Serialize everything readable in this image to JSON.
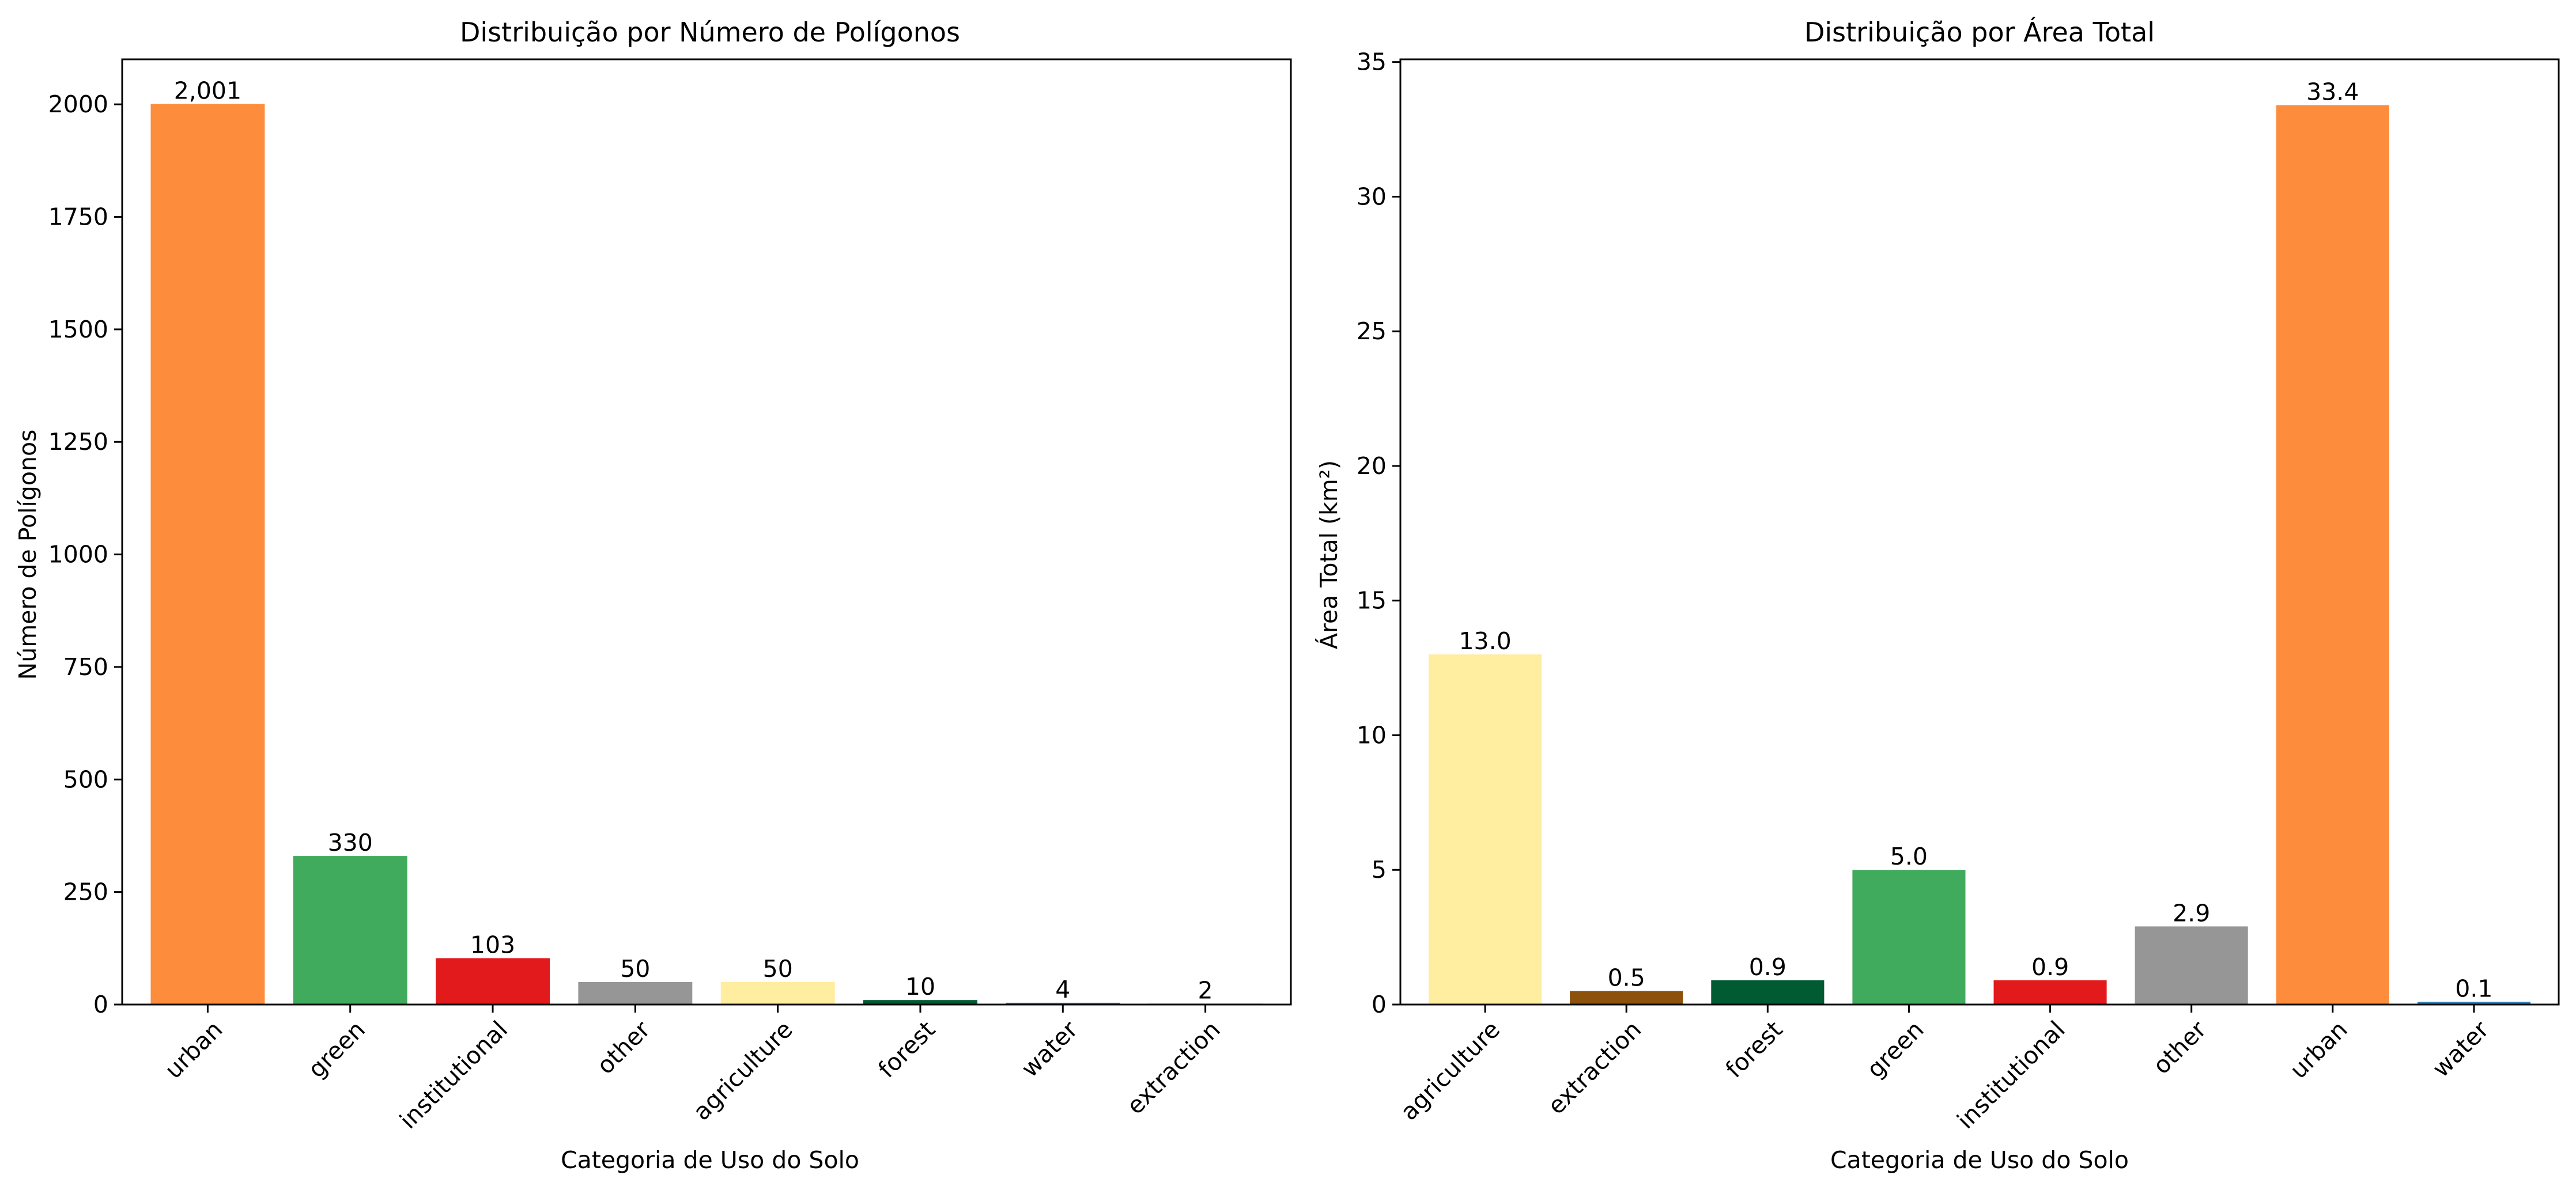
{
  "chart_data": [
    {
      "type": "bar",
      "title": "Distribuição por Número de Polígonos",
      "xlabel": "Categoria de Uso do Solo",
      "ylabel": "Número de Polígonos",
      "categories": [
        "urban",
        "green",
        "institutional",
        "other",
        "agriculture",
        "forest",
        "water",
        "extraction"
      ],
      "values": [
        2001,
        330,
        103,
        50,
        50,
        10,
        4,
        2
      ],
      "value_labels": [
        "2,001",
        "330",
        "103",
        "50",
        "50",
        "10",
        "4",
        "2"
      ],
      "colors": [
        "#fd8d3c",
        "#41ab5d",
        "#e31a1c",
        "#969696",
        "#ffeda0",
        "#005a32",
        "#2c7fb8",
        "#8c510a"
      ],
      "ylim": [
        0,
        2100
      ],
      "yticks": [
        0,
        250,
        500,
        750,
        1000,
        1250,
        1500,
        1750,
        2000
      ],
      "grid": false,
      "legend": "none"
    },
    {
      "type": "bar",
      "title": "Distribuição por Área Total",
      "xlabel": "Categoria de Uso do Solo",
      "ylabel": "Área Total (km²)",
      "categories": [
        "agriculture",
        "extraction",
        "forest",
        "green",
        "institutional",
        "other",
        "urban",
        "water"
      ],
      "values": [
        13.0,
        0.5,
        0.9,
        5.0,
        0.9,
        2.9,
        33.4,
        0.1
      ],
      "value_labels": [
        "13.0",
        "0.5",
        "0.9",
        "5.0",
        "0.9",
        "2.9",
        "33.4",
        "0.1"
      ],
      "colors": [
        "#ffeda0",
        "#8c510a",
        "#005a32",
        "#41ab5d",
        "#e31a1c",
        "#969696",
        "#fd8d3c",
        "#2c7fb8"
      ],
      "ylim": [
        0,
        35.1
      ],
      "yticks": [
        0,
        5,
        10,
        15,
        20,
        25,
        30,
        35
      ],
      "grid": false,
      "legend": "none"
    }
  ]
}
